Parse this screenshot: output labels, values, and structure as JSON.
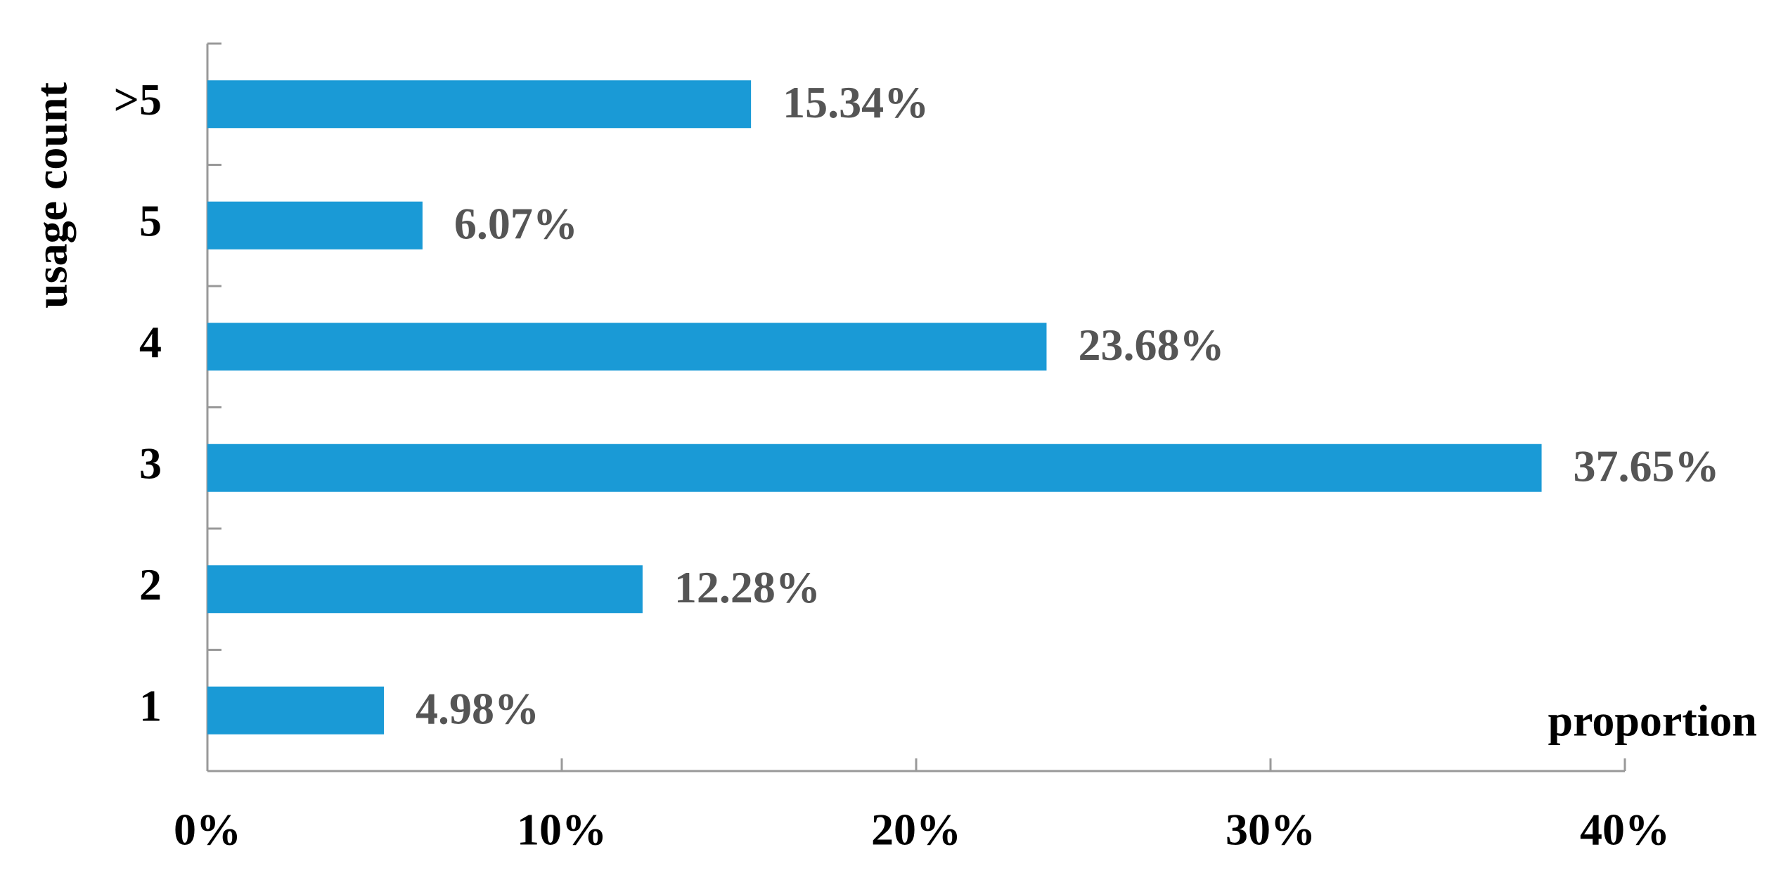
{
  "chart_data": {
    "type": "hbar",
    "y_label": "usage count",
    "x_label": "proportion",
    "categories": [
      "1",
      "2",
      "3",
      "4",
      "5",
      ">5"
    ],
    "values": [
      4.98,
      12.28,
      37.65,
      23.68,
      6.07,
      15.34
    ],
    "value_labels": [
      "4.98%",
      "12.28%",
      "37.65%",
      "23.68%",
      "6.07%",
      "15.34%"
    ],
    "color": "#1a9ad6",
    "xlim": [
      0,
      40
    ],
    "xticks": [
      {
        "value": 0,
        "label": "0%"
      },
      {
        "value": 10,
        "label": "10%"
      },
      {
        "value": 20,
        "label": "20%"
      },
      {
        "value": 30,
        "label": "30%"
      },
      {
        "value": 40,
        "label": "40%"
      }
    ]
  }
}
